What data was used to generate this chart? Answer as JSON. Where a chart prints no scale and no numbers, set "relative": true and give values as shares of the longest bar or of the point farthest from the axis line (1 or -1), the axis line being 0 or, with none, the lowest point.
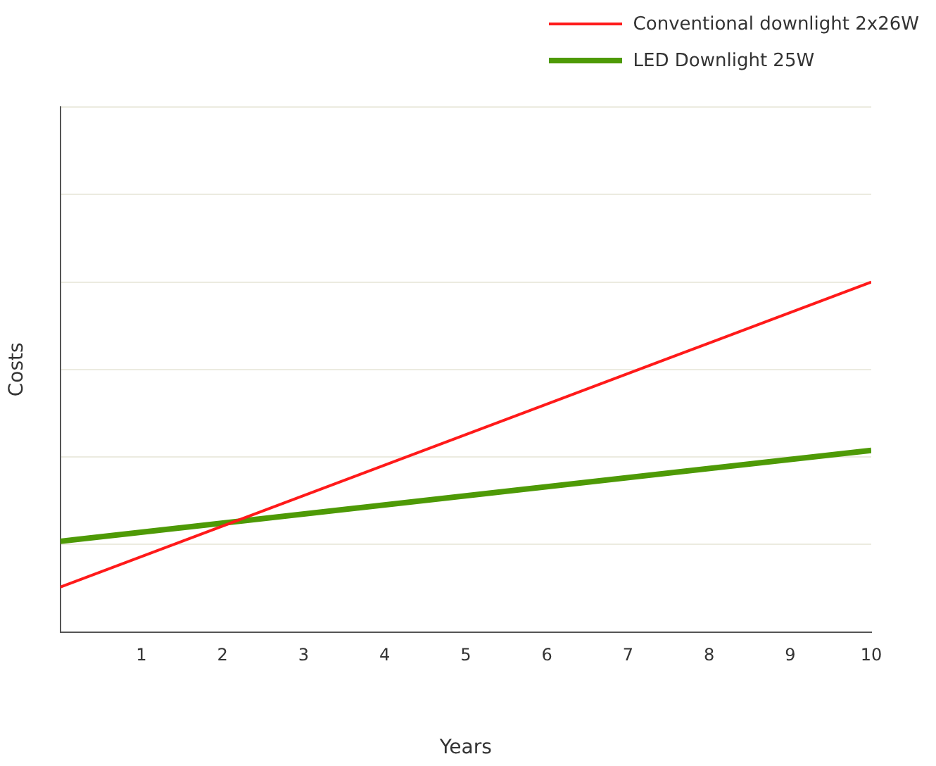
{
  "chart_data": {
    "type": "line",
    "xlabel": "Years",
    "ylabel": "Costs",
    "relative": true,
    "x": [
      0,
      10
    ],
    "xlim": [
      0,
      10
    ],
    "xticks": [
      1,
      2,
      3,
      4,
      5,
      6,
      7,
      8,
      9,
      10
    ],
    "grid": "y",
    "legend": "top right",
    "marker": "none",
    "line_style": "solid",
    "series": [
      {
        "name": "Conventional downlight 2x26W",
        "color": "#ff1a1a",
        "values": [
          0.128,
          1
        ]
      },
      {
        "name": "LED Downlight 25W",
        "color": "#4e9a06",
        "values": [
          0.259,
          0.519
        ]
      }
    ]
  }
}
